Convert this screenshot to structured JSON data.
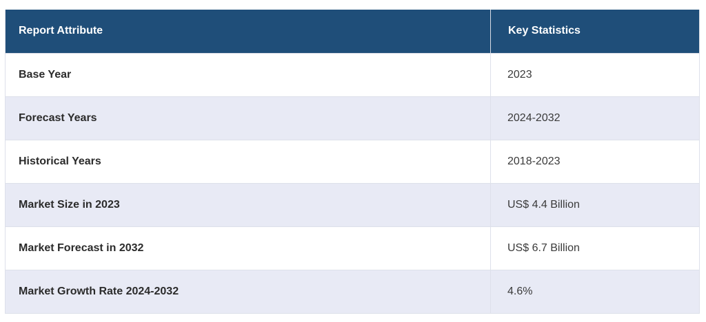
{
  "table": {
    "headers": [
      "Report Attribute",
      "Key Statistics"
    ],
    "rows": [
      {
        "attribute": "Base Year",
        "value": "2023"
      },
      {
        "attribute": "Forecast Years",
        "value": "2024-2032"
      },
      {
        "attribute": "Historical Years",
        "value": "2018-2023"
      },
      {
        "attribute": "Market Size in 2023",
        "value": "US$ 4.4 Billion"
      },
      {
        "attribute": "Market Forecast in 2032",
        "value": "US$ 6.7 Billion"
      },
      {
        "attribute": "Market Growth Rate 2024-2032",
        "value": "4.6%"
      }
    ],
    "colors": {
      "header_bg": "#1f4e79",
      "header_text": "#ffffff",
      "stripe_bg": "#e8eaf5",
      "row_bg": "#ffffff"
    }
  }
}
